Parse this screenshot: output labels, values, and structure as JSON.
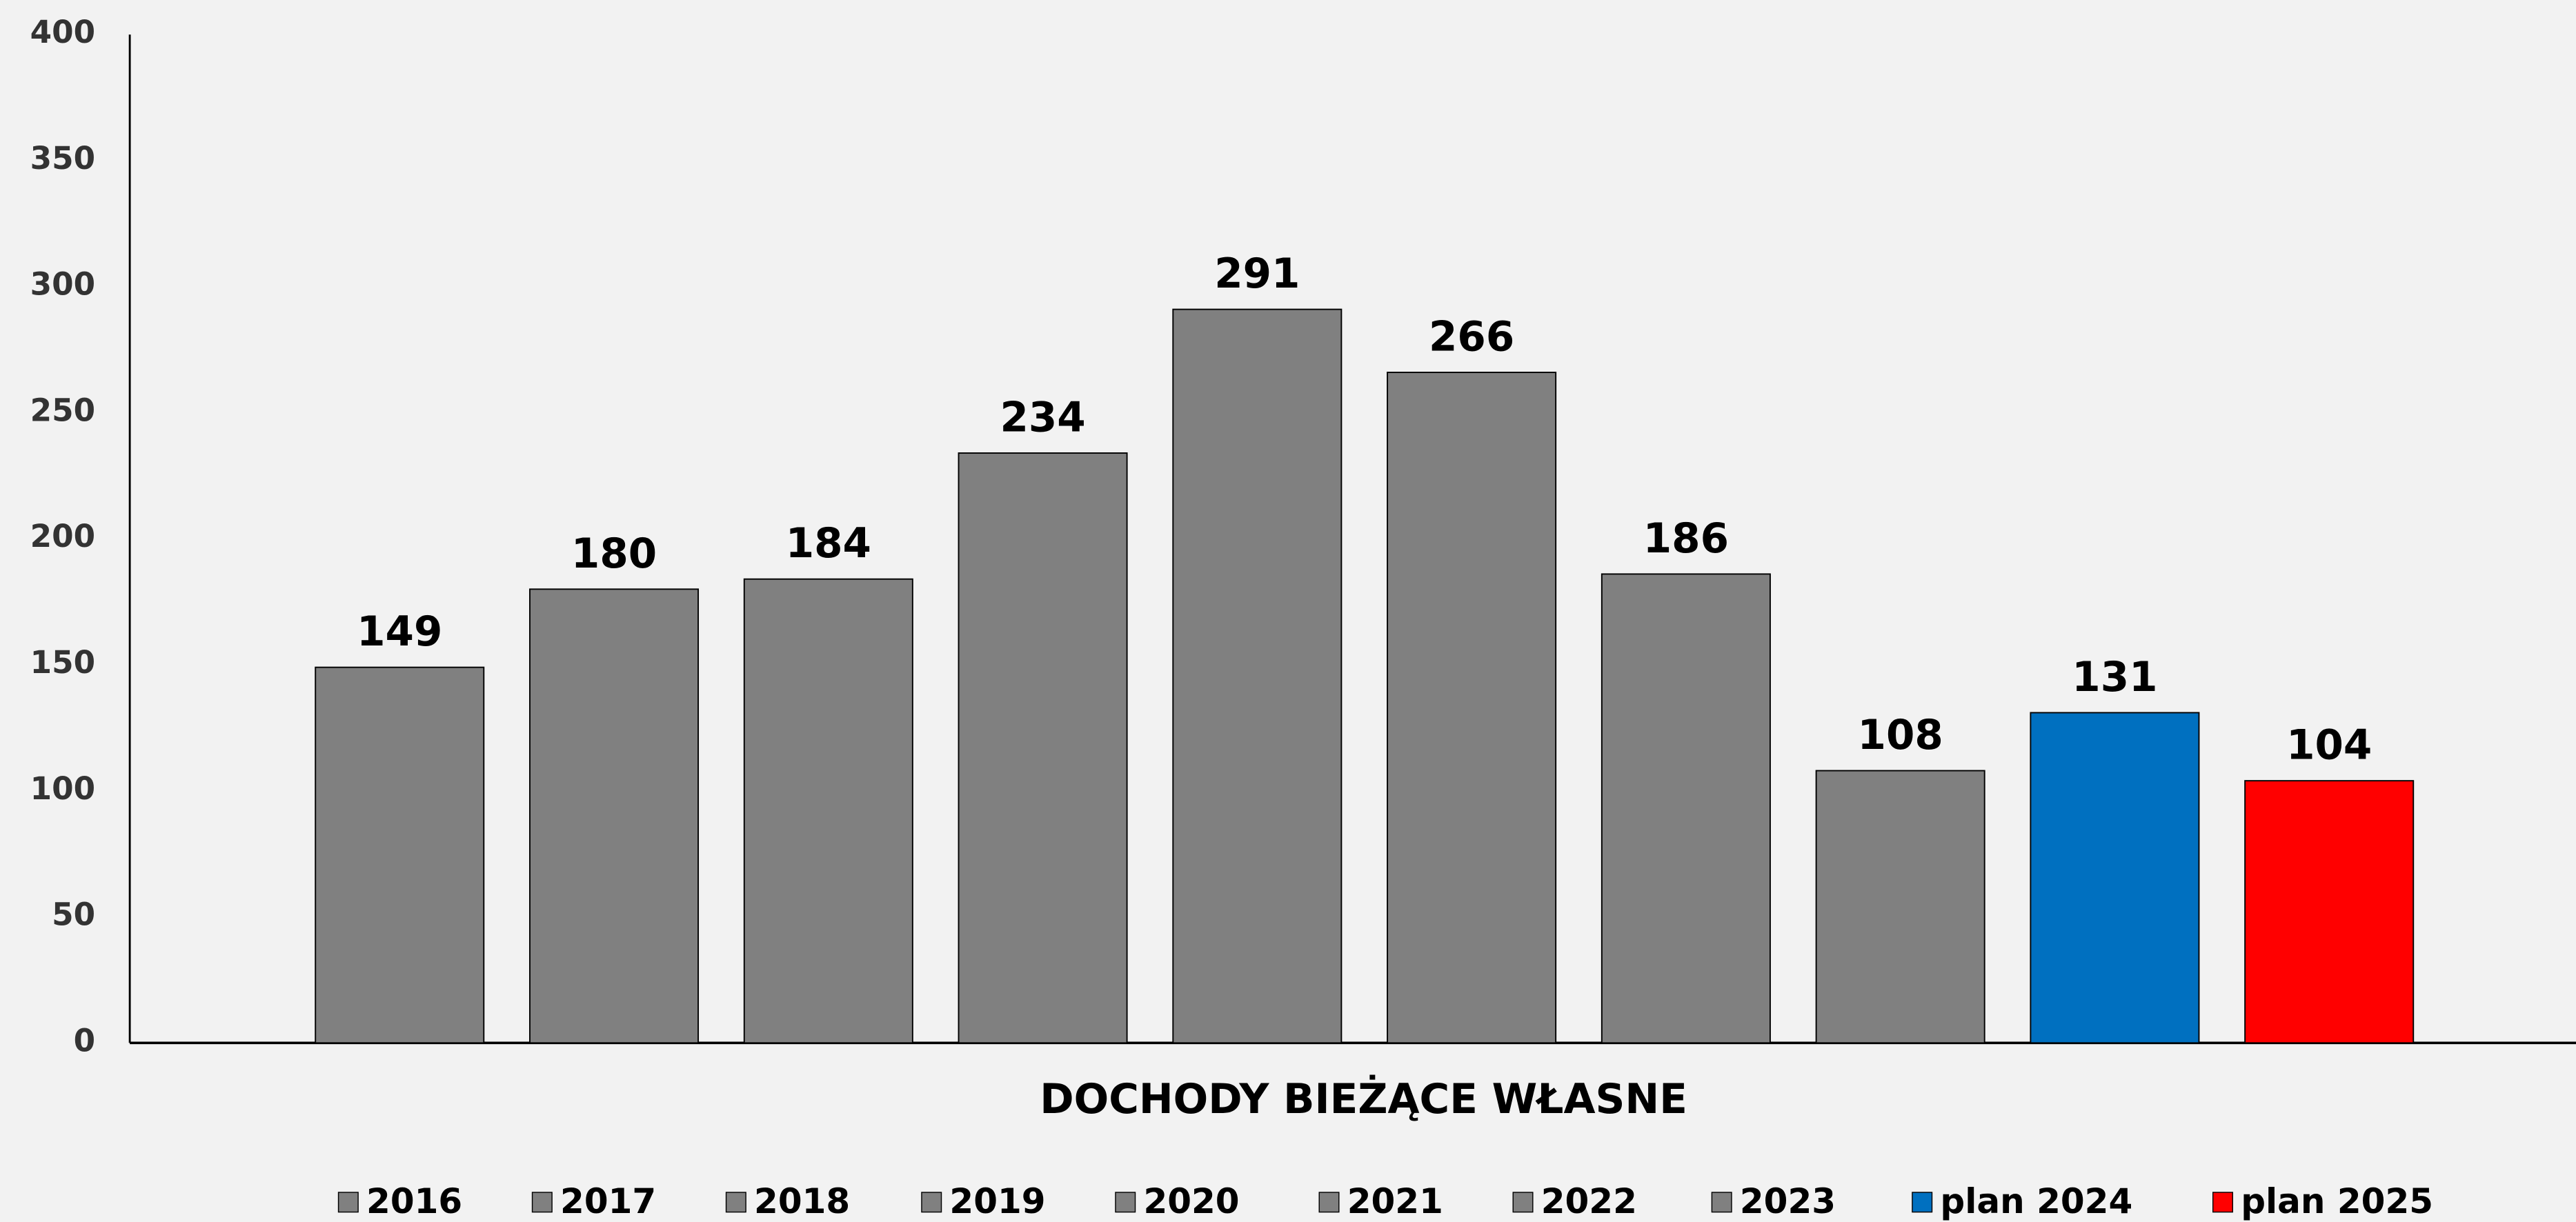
{
  "chart_data": {
    "type": "bar",
    "categories": [
      "DOCHODY BIEŻĄCE WŁASNE"
    ],
    "series": [
      {
        "name": "2016",
        "color": "#808080",
        "values": [
          149
        ]
      },
      {
        "name": "2017",
        "color": "#808080",
        "values": [
          180
        ]
      },
      {
        "name": "2018",
        "color": "#808080",
        "values": [
          184
        ]
      },
      {
        "name": "2019",
        "color": "#808080",
        "values": [
          234
        ]
      },
      {
        "name": "2020",
        "color": "#808080",
        "values": [
          291
        ]
      },
      {
        "name": "2021",
        "color": "#808080",
        "values": [
          266
        ]
      },
      {
        "name": "2022",
        "color": "#808080",
        "values": [
          186
        ]
      },
      {
        "name": "2023",
        "color": "#808080",
        "values": [
          108
        ]
      },
      {
        "name": "plan 2024",
        "color": "#0070c0",
        "values": [
          131
        ]
      },
      {
        "name": "plan 2025",
        "color": "#ff0000",
        "values": [
          104
        ]
      }
    ],
    "ylim": [
      0,
      400
    ],
    "yticks": [
      0,
      50,
      100,
      150,
      200,
      250,
      300,
      350,
      400
    ],
    "grid": false,
    "legend": "bottom"
  }
}
